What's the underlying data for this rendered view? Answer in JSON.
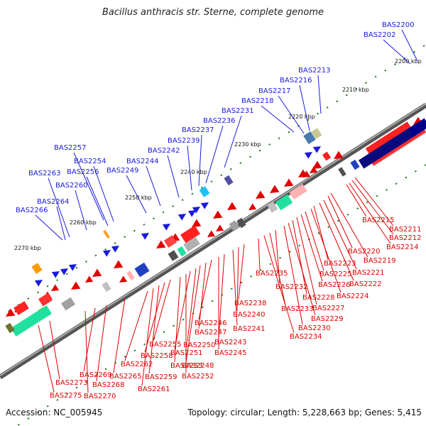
{
  "title": "Bacillus anthracis str. Sterne, complete genome",
  "footer": {
    "accession": "Accession: NC_005945",
    "topology": "Topology: circular; Length: 5,228,663 bp; Genes: 5,415"
  },
  "kbp_ticks": [
    "2200 kbp",
    "2210 kbp",
    "2220 kbp",
    "2230 kbp",
    "2240 kbp",
    "2250 kbp",
    "2260 kbp",
    "2270 kbp"
  ],
  "forward_genes": [
    "BAS2200",
    "BAS2202",
    "BAS2213",
    "BAS2216",
    "BAS2217",
    "BAS2218",
    "BAS2231",
    "BAS2236",
    "BAS2237",
    "BAS2239",
    "BAS2242",
    "BAS2244",
    "BAS2249",
    "BAS2254",
    "BAS2256",
    "BAS2257",
    "BAS2260",
    "BAS2263",
    "BAS2264",
    "BAS2266"
  ],
  "reverse_genes": [
    "BAS2211",
    "BAS2212",
    "BAS2214",
    "BAS2215",
    "BAS2219",
    "BAS2220",
    "BAS2221",
    "BAS2222",
    "BAS2223",
    "BAS2224",
    "BAS2225",
    "BAS2226",
    "BAS2227",
    "BAS2228",
    "BAS2229",
    "BAS2230",
    "BAS2232",
    "BAS2233",
    "BAS2234",
    "BAS2235",
    "BAS2238",
    "BAS2240",
    "BAS2241",
    "BAS2243",
    "BAS2245",
    "BAS2246",
    "BAS2247",
    "BAS2248",
    "BAS2250",
    "BAS2251",
    "BAS2252",
    "BAS2253",
    "BAS2255",
    "BAS2258",
    "BAS2259",
    "BAS2261",
    "BAS2262",
    "BAS2265",
    "BAS2268",
    "BAS2269",
    "BAS2270",
    "BAS2273",
    "BAS2275"
  ],
  "colors": {
    "forward": "#1a1adf",
    "reverse": "#e00000",
    "backbone": "#777777",
    "tick": "#1e7a1e"
  }
}
